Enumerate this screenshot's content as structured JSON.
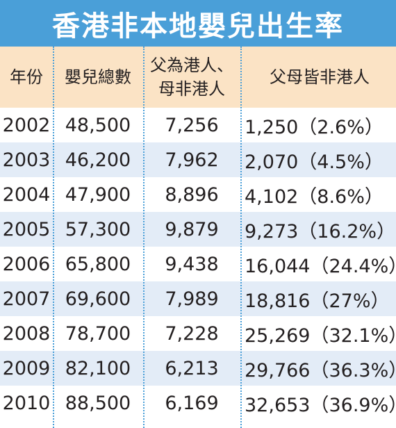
{
  "chart_data": {
    "type": "table",
    "title": "香港非本地嬰兒出生率",
    "columns": [
      "年份",
      "嬰兒總數",
      "父為港人、母非港人",
      "父母皆非港人"
    ],
    "header_lines": [
      [
        "年份"
      ],
      [
        "嬰兒總數"
      ],
      [
        "父為港人、",
        "母非港人"
      ],
      [
        "父母皆非港人"
      ]
    ],
    "rows": [
      [
        "2002",
        "48,500",
        "7,256",
        "1,250（2.6%）"
      ],
      [
        "2003",
        "46,200",
        "7,962",
        "2,070（4.5%）"
      ],
      [
        "2004",
        "47,900",
        "8,896",
        "4,102（8.6%）"
      ],
      [
        "2005",
        "57,300",
        "9,879",
        "9,273（16.2%）"
      ],
      [
        "2006",
        "65,800",
        "9,438",
        "16,044（24.4%）"
      ],
      [
        "2007",
        "69,600",
        "7,989",
        "18,816（27%）"
      ],
      [
        "2008",
        "78,700",
        "7,228",
        "25,269（32.1%）"
      ],
      [
        "2009",
        "82,100",
        "6,213",
        "29,766（36.3%）"
      ],
      [
        "2010",
        "88,500",
        "6,169",
        "32,653（36.9%）"
      ]
    ]
  },
  "colors": {
    "title_bg": "#4a9fd8",
    "header_bg": "#fbe3c5",
    "alt_row_bg": "#e3ecf7",
    "divider": "#4a9fd8"
  }
}
